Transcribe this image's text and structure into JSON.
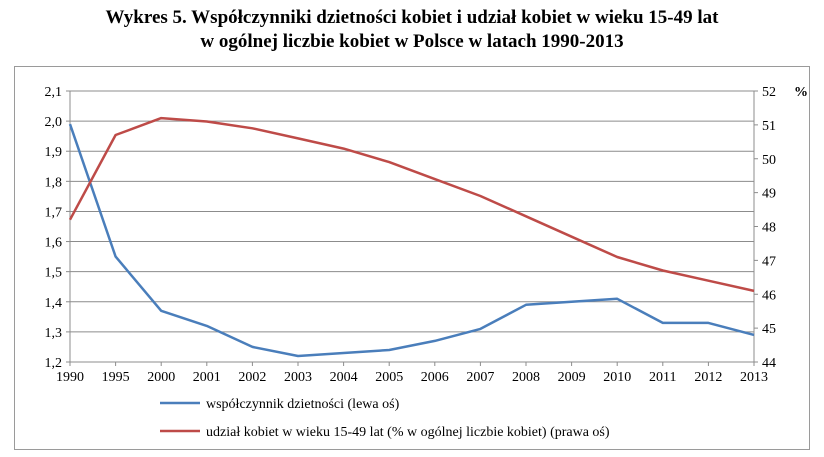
{
  "title_line1": "Wykres 5. Współczynniki dzietności kobiet i udział kobiet w wieku 15-49 lat",
  "title_line2": "w ogólnej liczbie kobiet w Polsce w latach 1990-2013",
  "chart_data": {
    "type": "line",
    "x": [
      1990,
      1995,
      2000,
      2001,
      2002,
      2003,
      2004,
      2005,
      2006,
      2007,
      2008,
      2009,
      2010,
      2011,
      2012,
      2013
    ],
    "x_tick_labels": [
      "1990",
      "1995",
      "2000",
      "2001",
      "2002",
      "2003",
      "2004",
      "2005",
      "2006",
      "2007",
      "2008",
      "2009",
      "2010",
      "2011",
      "2012",
      "2013"
    ],
    "left_axis": {
      "ylim": [
        1.2,
        2.1
      ],
      "ticks": [
        1.2,
        1.3,
        1.4,
        1.5,
        1.6,
        1.7,
        1.8,
        1.9,
        2.0,
        2.1
      ],
      "tick_labels": [
        "1,2",
        "1,3",
        "1,4",
        "1,5",
        "1,6",
        "1,7",
        "1,8",
        "1,9",
        "2,0",
        "2,1"
      ]
    },
    "right_axis": {
      "ylim": [
        44,
        52
      ],
      "ticks": [
        44,
        45,
        46,
        47,
        48,
        49,
        50,
        51,
        52
      ],
      "tick_labels": [
        "44",
        "45",
        "46",
        "47",
        "48",
        "49",
        "50",
        "51",
        "52"
      ],
      "unit_label": "%"
    },
    "series": [
      {
        "name": "współczynnik dzietności (lewa oś)",
        "axis": "left",
        "color": "#4a7ebb",
        "values": [
          1.99,
          1.55,
          1.37,
          1.32,
          1.25,
          1.22,
          1.23,
          1.24,
          1.27,
          1.31,
          1.39,
          1.4,
          1.41,
          1.33,
          1.33,
          1.29
        ]
      },
      {
        "name": "udział kobiet w wieku 15-49 lat (% w ogólnej liczbie kobiet) (prawa oś)",
        "axis": "right",
        "color": "#be4b48",
        "values": [
          48.2,
          50.7,
          51.2,
          51.1,
          50.9,
          50.6,
          50.3,
          49.9,
          49.4,
          48.9,
          48.3,
          47.7,
          47.1,
          46.7,
          46.4,
          46.1
        ]
      }
    ],
    "grid": "horizontal",
    "legend_position": "bottom"
  }
}
